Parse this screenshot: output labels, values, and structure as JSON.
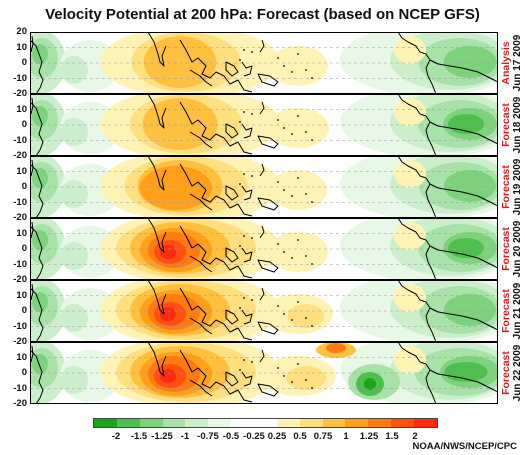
{
  "title": "Velocity Potential at 200 hPa: Forecast (based on NCEP GFS)",
  "y_tick_labels": [
    "20",
    "10",
    "0",
    "-10",
    "-20"
  ],
  "panels": [
    {
      "kind": "Analysis",
      "date": "Jun 17 2009",
      "neg_east": 0.55,
      "pos_west": 0.45,
      "pos_mid": 0.2
    },
    {
      "kind": "Forecast",
      "date": "Jun 18 2009",
      "neg_east": 0.6,
      "pos_west": 0.5,
      "pos_mid": 0.25
    },
    {
      "kind": "Forecast",
      "date": "Jun 19 2009",
      "neg_east": 0.5,
      "pos_west": 0.7,
      "pos_mid": 0.15
    },
    {
      "kind": "Forecast",
      "date": "Jun 20 2009",
      "neg_east": 0.6,
      "pos_west": 1.0,
      "pos_mid": 0.2
    },
    {
      "kind": "Forecast",
      "date": "Jun 21 2009",
      "neg_east": 0.5,
      "pos_west": 1.0,
      "pos_mid": 0.45
    },
    {
      "kind": "Forecast",
      "date": "Jun 22 2009",
      "neg_east": 0.95,
      "pos_west": 1.0,
      "pos_mid": 0.6
    }
  ],
  "colorbar": {
    "colors": [
      "#1aa51a",
      "#4dbf4d",
      "#7ed27e",
      "#a8e2a8",
      "#cbefcb",
      "#e7f8e7",
      "#ffffff",
      "#ffffff",
      "#fff2b5",
      "#ffdf80",
      "#ffc040",
      "#ff9f1a",
      "#ff7a10",
      "#ff5010",
      "#ff2a10"
    ],
    "tick_labels": [
      "-2",
      "-1.5",
      "-1.25",
      "-1",
      "-0.75",
      "-0.5",
      "-0.25",
      "0.25",
      "0.5",
      "0.75",
      "1",
      "1.25",
      "1.5",
      "2"
    ]
  },
  "credit": "NOAA/NWS/NCEP/CPC"
}
